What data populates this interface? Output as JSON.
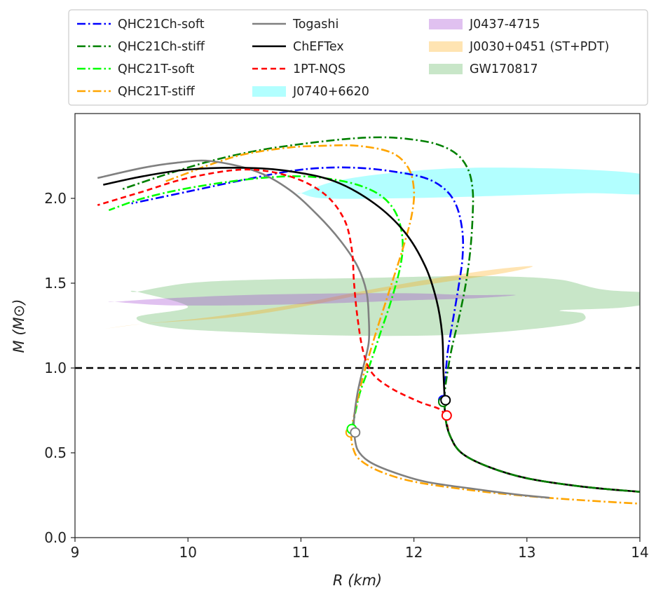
{
  "chart_data": {
    "type": "line",
    "title": "",
    "xlabel": "R (km)",
    "ylabel": "M (M⊙)",
    "xlim": [
      9,
      14
    ],
    "ylim": [
      0,
      2.5
    ],
    "xticks": [
      9,
      10,
      11,
      12,
      13,
      14
    ],
    "yticks": [
      0.0,
      0.5,
      1.0,
      1.5,
      2.0
    ],
    "xtick_labels": [
      "9",
      "10",
      "11",
      "12",
      "13",
      "14"
    ],
    "ytick_labels": [
      "0.0",
      "0.5",
      "1.0",
      "1.5",
      "2.0"
    ],
    "grid": false,
    "legend_position": "top (above plot)",
    "reference_line": {
      "y": 1.0,
      "style": "dashed",
      "color": "#000000"
    },
    "series": [
      {
        "name": "QHC21Ch-soft",
        "color": "#0000ff",
        "style": "dashdot",
        "points": [
          [
            12.27,
            0.81
          ],
          [
            12.27,
            0.85
          ],
          [
            12.28,
            0.95
          ],
          [
            12.3,
            1.1
          ],
          [
            12.35,
            1.3
          ],
          [
            12.4,
            1.5
          ],
          [
            12.43,
            1.65
          ],
          [
            12.43,
            1.8
          ],
          [
            12.38,
            1.95
          ],
          [
            12.28,
            2.05
          ],
          [
            12.1,
            2.12
          ],
          [
            11.8,
            2.16
          ],
          [
            11.5,
            2.18
          ],
          [
            11.2,
            2.18
          ],
          [
            10.9,
            2.16
          ],
          [
            10.5,
            2.11
          ],
          [
            10.0,
            2.04
          ],
          [
            9.5,
            1.97
          ]
        ]
      },
      {
        "name": "QHC21Ch-stiff",
        "color": "#008000",
        "style": "dashdot",
        "points": [
          [
            12.27,
            0.81
          ],
          [
            12.28,
            0.9
          ],
          [
            12.33,
            1.1
          ],
          [
            12.4,
            1.3
          ],
          [
            12.46,
            1.5
          ],
          [
            12.5,
            1.7
          ],
          [
            12.52,
            1.9
          ],
          [
            12.52,
            2.05
          ],
          [
            12.48,
            2.17
          ],
          [
            12.38,
            2.26
          ],
          [
            12.2,
            2.32
          ],
          [
            11.95,
            2.35
          ],
          [
            11.7,
            2.36
          ],
          [
            11.4,
            2.35
          ],
          [
            11.0,
            2.32
          ],
          [
            10.6,
            2.28
          ],
          [
            10.2,
            2.22
          ],
          [
            9.8,
            2.14
          ],
          [
            9.4,
            2.05
          ]
        ]
      },
      {
        "name": "QHC21T-soft",
        "color": "#00ff00",
        "style": "dashdot",
        "points": [
          [
            11.45,
            0.64
          ],
          [
            11.47,
            0.7
          ],
          [
            11.52,
            0.85
          ],
          [
            11.6,
            1.0
          ],
          [
            11.7,
            1.2
          ],
          [
            11.8,
            1.4
          ],
          [
            11.88,
            1.6
          ],
          [
            11.9,
            1.75
          ],
          [
            11.85,
            1.9
          ],
          [
            11.72,
            2.01
          ],
          [
            11.5,
            2.08
          ],
          [
            11.2,
            2.12
          ],
          [
            10.9,
            2.13
          ],
          [
            10.5,
            2.11
          ],
          [
            10.0,
            2.06
          ],
          [
            9.6,
            2.0
          ],
          [
            9.3,
            1.93
          ]
        ]
      },
      {
        "name": "QHC21T-stiff",
        "color": "#ffa500",
        "style": "dashdot",
        "points": [
          [
            11.44,
            0.62
          ],
          [
            11.48,
            0.75
          ],
          [
            11.55,
            0.95
          ],
          [
            11.66,
            1.2
          ],
          [
            11.78,
            1.45
          ],
          [
            11.9,
            1.7
          ],
          [
            11.98,
            1.9
          ],
          [
            12.0,
            2.05
          ],
          [
            11.95,
            2.18
          ],
          [
            11.8,
            2.27
          ],
          [
            11.5,
            2.31
          ],
          [
            11.2,
            2.31
          ],
          [
            10.9,
            2.3
          ],
          [
            10.5,
            2.26
          ],
          [
            10.2,
            2.2
          ],
          [
            10.0,
            2.15
          ],
          [
            9.8,
            2.1
          ]
        ]
      },
      {
        "name": "QHC21T-stiff",
        "color": "#ffa500",
        "style": "dashdot",
        "branch": "crust",
        "points": [
          [
            11.44,
            0.62
          ],
          [
            11.46,
            0.53
          ],
          [
            11.52,
            0.46
          ],
          [
            11.7,
            0.39
          ],
          [
            12.0,
            0.33
          ],
          [
            12.5,
            0.28
          ],
          [
            13.0,
            0.245
          ],
          [
            13.5,
            0.22
          ],
          [
            14.0,
            0.2
          ]
        ]
      },
      {
        "name": "Togashi",
        "color": "#808080",
        "style": "solid",
        "points": [
          [
            11.47,
            0.62
          ],
          [
            11.47,
            0.7
          ],
          [
            11.5,
            0.85
          ],
          [
            11.55,
            1.0
          ],
          [
            11.6,
            1.15
          ],
          [
            11.6,
            1.3
          ],
          [
            11.58,
            1.45
          ],
          [
            11.5,
            1.6
          ],
          [
            11.35,
            1.75
          ],
          [
            11.15,
            1.9
          ],
          [
            10.9,
            2.05
          ],
          [
            10.6,
            2.16
          ],
          [
            10.2,
            2.22
          ],
          [
            9.9,
            2.21
          ],
          [
            9.6,
            2.18
          ],
          [
            9.2,
            2.12
          ]
        ]
      },
      {
        "name": "Togashi",
        "color": "#808080",
        "style": "solid",
        "branch": "crust",
        "points": [
          [
            11.47,
            0.62
          ],
          [
            11.5,
            0.52
          ],
          [
            11.6,
            0.45
          ],
          [
            11.8,
            0.39
          ],
          [
            12.1,
            0.33
          ],
          [
            12.5,
            0.29
          ],
          [
            12.9,
            0.255
          ],
          [
            13.2,
            0.235
          ]
        ]
      },
      {
        "name": "ChEFTex",
        "color": "#000000",
        "style": "solid",
        "points": [
          [
            12.28,
            0.81
          ],
          [
            12.27,
            0.85
          ],
          [
            12.26,
            1.0
          ],
          [
            12.25,
            1.2
          ],
          [
            12.2,
            1.4
          ],
          [
            12.1,
            1.6
          ],
          [
            11.92,
            1.8
          ],
          [
            11.65,
            1.97
          ],
          [
            11.3,
            2.1
          ],
          [
            10.9,
            2.16
          ],
          [
            10.5,
            2.18
          ],
          [
            10.0,
            2.17
          ],
          [
            9.6,
            2.13
          ],
          [
            9.25,
            2.08
          ]
        ]
      },
      {
        "name": "1PT-NQS",
        "color": "#ff0000",
        "style": "dashed",
        "points": [
          [
            12.28,
            0.72
          ],
          [
            12.22,
            0.76
          ],
          [
            12.05,
            0.8
          ],
          [
            11.8,
            0.88
          ],
          [
            11.63,
            0.97
          ],
          [
            11.55,
            1.1
          ],
          [
            11.5,
            1.3
          ],
          [
            11.47,
            1.5
          ],
          [
            11.45,
            1.7
          ],
          [
            11.38,
            1.88
          ],
          [
            11.2,
            2.03
          ],
          [
            10.9,
            2.13
          ],
          [
            10.5,
            2.17
          ],
          [
            10.0,
            2.12
          ],
          [
            9.6,
            2.04
          ],
          [
            9.2,
            1.96
          ]
        ]
      },
      {
        "name": "1PT-NQS",
        "color": "#ff0000",
        "style": "dashed",
        "branch": "crust",
        "points": [
          [
            12.28,
            0.72
          ],
          [
            12.32,
            0.6
          ],
          [
            12.42,
            0.5
          ],
          [
            12.65,
            0.42
          ],
          [
            13.0,
            0.35
          ],
          [
            13.5,
            0.3
          ],
          [
            14.0,
            0.27
          ]
        ]
      },
      {
        "name": "ChEFTex",
        "color": "#000000",
        "style": "solid",
        "branch": "crust",
        "points": [
          [
            12.27,
            0.81
          ],
          [
            12.28,
            0.7
          ],
          [
            12.32,
            0.6
          ],
          [
            12.42,
            0.5
          ],
          [
            12.65,
            0.42
          ],
          [
            13.0,
            0.35
          ],
          [
            13.5,
            0.3
          ],
          [
            14.0,
            0.27
          ]
        ]
      },
      {
        "name": "QHC21Ch-stiff",
        "color": "#008000",
        "style": "dashdot",
        "branch": "crust",
        "points": [
          [
            12.27,
            0.81
          ],
          [
            12.28,
            0.7
          ],
          [
            12.32,
            0.6
          ],
          [
            12.42,
            0.5
          ],
          [
            12.65,
            0.42
          ],
          [
            13.0,
            0.35
          ],
          [
            13.5,
            0.3
          ],
          [
            14.0,
            0.27
          ]
        ]
      }
    ],
    "markers": [
      {
        "series": "QHC21T-stiff",
        "x": 11.44,
        "y": 0.62,
        "color": "#ffa500"
      },
      {
        "series": "QHC21T-soft",
        "x": 11.45,
        "y": 0.64,
        "color": "#00ff00"
      },
      {
        "series": "Togashi",
        "x": 11.48,
        "y": 0.62,
        "color": "#808080"
      },
      {
        "series": "QHC21Ch-soft",
        "x": 12.26,
        "y": 0.81,
        "color": "#0000ff"
      },
      {
        "series": "QHC21Ch-stiff",
        "x": 12.26,
        "y": 0.8,
        "color": "#008000"
      },
      {
        "series": "1PT-NQS",
        "x": 12.29,
        "y": 0.72,
        "color": "#ff0000"
      },
      {
        "series": "ChEFTex",
        "x": 12.28,
        "y": 0.81,
        "color": "#000000"
      }
    ],
    "regions": [
      {
        "name": "GW170817",
        "color": "#2ca02c",
        "opacity": 0.26,
        "polygon": [
          [
            9.55,
            1.45
          ],
          [
            10.0,
            1.5
          ],
          [
            10.6,
            1.52
          ],
          [
            11.5,
            1.53
          ],
          [
            12.2,
            1.54
          ],
          [
            12.8,
            1.54
          ],
          [
            13.3,
            1.52
          ],
          [
            13.7,
            1.46
          ],
          [
            14.4,
            1.43
          ],
          [
            13.9,
            1.36
          ],
          [
            13.3,
            1.34
          ],
          [
            13.5,
            1.32
          ],
          [
            13.4,
            1.26
          ],
          [
            12.5,
            1.2
          ],
          [
            11.5,
            1.19
          ],
          [
            10.5,
            1.21
          ],
          [
            9.8,
            1.24
          ],
          [
            9.55,
            1.3
          ],
          [
            10.0,
            1.36
          ],
          [
            9.55,
            1.45
          ]
        ]
      },
      {
        "name": "J0030+0451 (ST+PDT)",
        "color": "#ffa500",
        "opacity": 0.3,
        "polygon": [
          [
            9.25,
            1.23
          ],
          [
            9.6,
            1.26
          ],
          [
            10.4,
            1.3
          ],
          [
            11.0,
            1.36
          ],
          [
            11.6,
            1.44
          ],
          [
            12.2,
            1.5
          ],
          [
            12.8,
            1.56
          ],
          [
            13.05,
            1.6
          ],
          [
            12.7,
            1.58
          ],
          [
            12.2,
            1.53
          ],
          [
            11.6,
            1.46
          ],
          [
            10.9,
            1.37
          ],
          [
            10.2,
            1.3
          ],
          [
            9.6,
            1.26
          ],
          [
            9.25,
            1.23
          ]
        ]
      },
      {
        "name": "J0437-4715",
        "color": "#9932cc",
        "opacity": 0.3,
        "polygon": [
          [
            9.35,
            1.39
          ],
          [
            9.8,
            1.41
          ],
          [
            10.5,
            1.43
          ],
          [
            11.4,
            1.44
          ],
          [
            12.0,
            1.44
          ],
          [
            12.5,
            1.43
          ],
          [
            12.9,
            1.43
          ],
          [
            12.5,
            1.41
          ],
          [
            12.0,
            1.4
          ],
          [
            11.2,
            1.38
          ],
          [
            10.5,
            1.37
          ],
          [
            9.8,
            1.37
          ],
          [
            9.35,
            1.39
          ]
        ]
      },
      {
        "name": "J0740+6620",
        "color": "#00ffff",
        "opacity": 0.3,
        "polygon": [
          [
            11.0,
            2.03
          ],
          [
            11.3,
            2.1
          ],
          [
            11.8,
            2.15
          ],
          [
            12.5,
            2.18
          ],
          [
            13.5,
            2.17
          ],
          [
            14.1,
            2.13
          ],
          [
            14.1,
            2.03
          ],
          [
            13.5,
            2.03
          ],
          [
            12.5,
            2.01
          ],
          [
            11.8,
            2.0
          ],
          [
            11.2,
            2.0
          ],
          [
            11.0,
            2.03
          ]
        ]
      }
    ],
    "legend": [
      {
        "label": "QHC21Ch-soft",
        "color": "#0000ff",
        "kind": "dashdot"
      },
      {
        "label": "QHC21Ch-stiff",
        "color": "#008000",
        "kind": "dashdot"
      },
      {
        "label": "QHC21T-soft",
        "color": "#00ff00",
        "kind": "dashdot"
      },
      {
        "label": "QHC21T-stiff",
        "color": "#ffa500",
        "kind": "dashdot"
      },
      {
        "label": "Togashi",
        "color": "#808080",
        "kind": "solid"
      },
      {
        "label": "ChEFTex",
        "color": "#000000",
        "kind": "solid"
      },
      {
        "label": "1PT-NQS",
        "color": "#ff0000",
        "kind": "dashed"
      },
      {
        "label": "J0740+6620",
        "color": "#00ffff",
        "kind": "patch",
        "opacity": 0.3
      },
      {
        "label": "J0437-4715",
        "color": "#9932cc",
        "kind": "patch",
        "opacity": 0.3
      },
      {
        "label": "J0030+0451 (ST+PDT)",
        "color": "#ffa500",
        "kind": "patch",
        "opacity": 0.3
      },
      {
        "label": "GW170817",
        "color": "#2ca02c",
        "kind": "patch",
        "opacity": 0.26
      }
    ]
  }
}
